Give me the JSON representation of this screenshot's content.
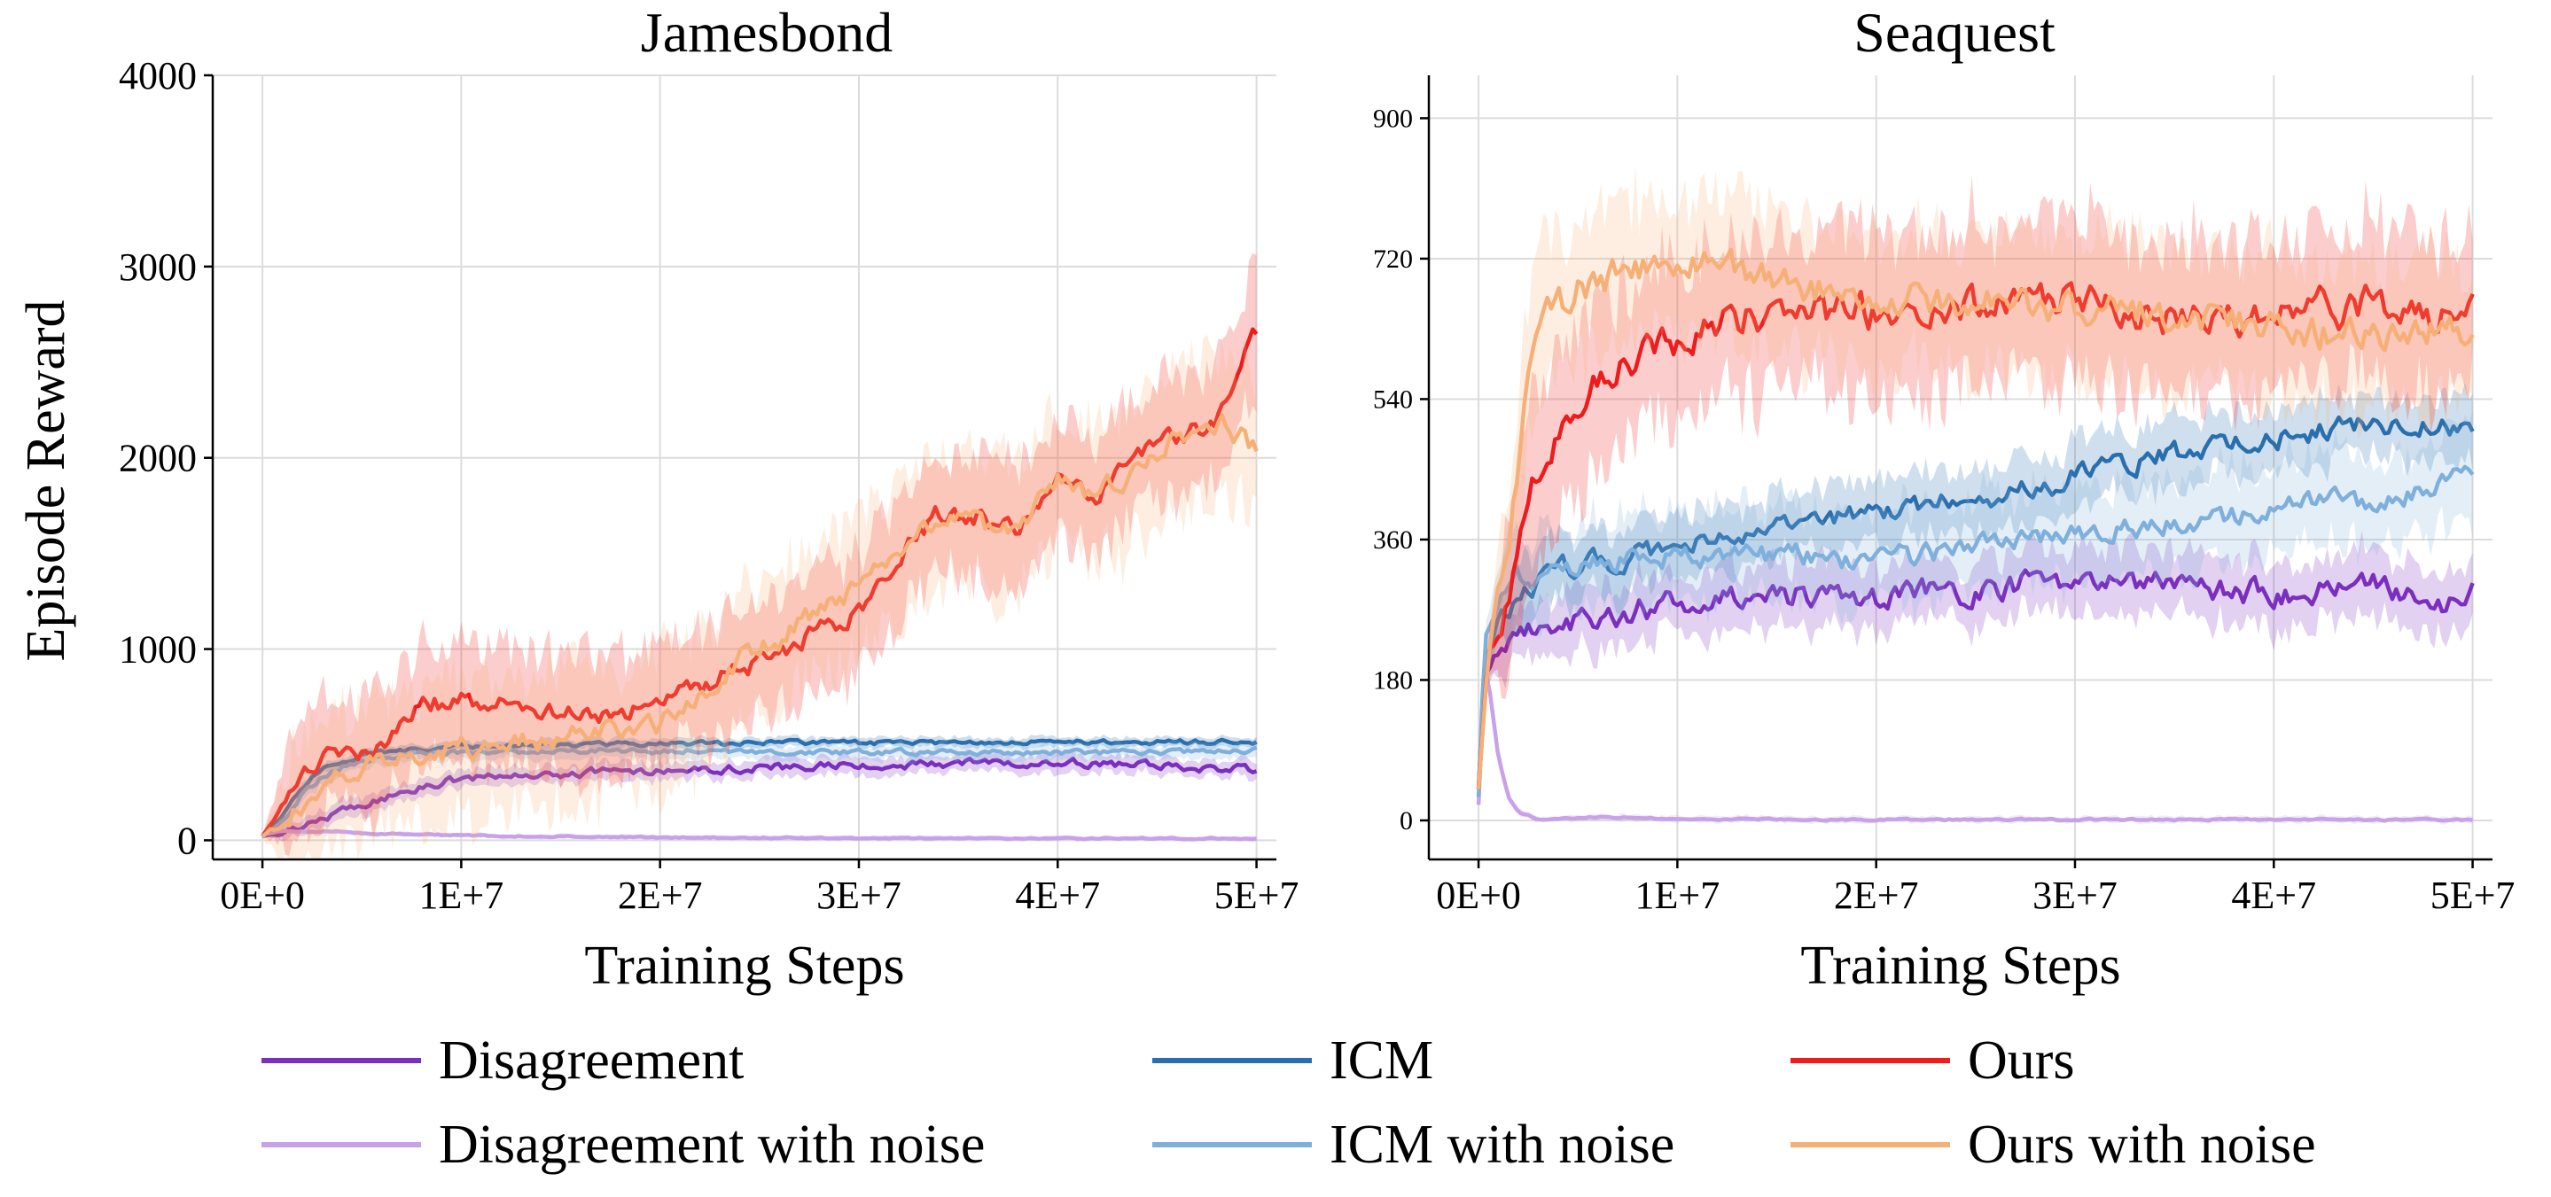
{
  "chart_data": [
    {
      "type": "line",
      "title": "Jamesbond",
      "xlabel": "Training Steps",
      "ylabel": "Episode Reward",
      "xlim": [
        -2500000,
        51000000
      ],
      "ylim": [
        -100,
        4000
      ],
      "xticks": [
        0,
        10000000,
        20000000,
        30000000,
        40000000,
        50000000
      ],
      "xtick_labels": [
        "0E+0",
        "1E+7",
        "2E+7",
        "3E+7",
        "4E+7",
        "5E+7"
      ],
      "yticks": [
        0,
        1000,
        2000,
        3000,
        4000
      ],
      "ytick_labels": [
        "0",
        "1000",
        "2000",
        "3000",
        "4000"
      ],
      "grid": true,
      "series": [
        {
          "name": "Disagreement",
          "color": "#7b2fbe",
          "band": 45,
          "wiggle": 18,
          "x": [
            0,
            1000000,
            2000000,
            4000000,
            6000000,
            8000000,
            10000000,
            15000000,
            20000000,
            25000000,
            30000000,
            35000000,
            40000000,
            45000000,
            50000000
          ],
          "y": [
            20,
            40,
            80,
            150,
            220,
            280,
            320,
            350,
            370,
            380,
            390,
            400,
            410,
            390,
            370
          ]
        },
        {
          "name": "Disagreement with noise",
          "color": "#c8a2e8",
          "band": 12,
          "wiggle": 3,
          "x": [
            0,
            1000000,
            3000000,
            6000000,
            10000000,
            20000000,
            30000000,
            40000000,
            50000000
          ],
          "y": [
            30,
            50,
            45,
            35,
            25,
            15,
            12,
            10,
            10
          ]
        },
        {
          "name": "ICM",
          "color": "#2a6fad",
          "band": 25,
          "wiggle": 10,
          "x": [
            0,
            1000000,
            2000000,
            3000000,
            4000000,
            6000000,
            8000000,
            10000000,
            15000000,
            20000000,
            25000000,
            30000000,
            35000000,
            40000000,
            45000000,
            50000000
          ],
          "y": [
            20,
            120,
            280,
            380,
            420,
            460,
            480,
            490,
            500,
            505,
            510,
            510,
            510,
            515,
            515,
            515
          ]
        },
        {
          "name": "ICM with noise",
          "color": "#7fb0dc",
          "band": 40,
          "wiggle": 12,
          "x": [
            0,
            1000000,
            2000000,
            3000000,
            4000000,
            6000000,
            8000000,
            10000000,
            15000000,
            20000000,
            25000000,
            30000000,
            35000000,
            40000000,
            45000000,
            50000000
          ],
          "y": [
            20,
            100,
            240,
            330,
            380,
            430,
            450,
            460,
            470,
            470,
            465,
            460,
            460,
            460,
            460,
            470
          ]
        },
        {
          "name": "Ours",
          "color": "#ee1c1c",
          "band": 300,
          "wiggle": 45,
          "x": [
            0,
            1000000,
            2000000,
            3000000,
            4000000,
            6000000,
            8000000,
            10000000,
            12000000,
            14000000,
            16000000,
            18000000,
            20000000,
            22000000,
            24000000,
            26000000,
            28000000,
            30000000,
            32000000,
            34000000,
            36000000,
            38000000,
            40000000,
            42000000,
            44000000,
            46000000,
            48000000,
            50000000
          ],
          "y": [
            20,
            200,
            380,
            430,
            450,
            500,
            700,
            740,
            700,
            680,
            650,
            680,
            700,
            800,
            900,
            950,
            1100,
            1200,
            1500,
            1700,
            1700,
            1600,
            1900,
            1800,
            2000,
            2100,
            2200,
            2650
          ]
        },
        {
          "name": "Ours with noise",
          "color": "#f6b077",
          "band": 350,
          "wiggle": 50,
          "x": [
            0,
            1000000,
            2000000,
            3000000,
            4000000,
            6000000,
            8000000,
            10000000,
            12000000,
            14000000,
            16000000,
            18000000,
            20000000,
            22000000,
            24000000,
            26000000,
            28000000,
            30000000,
            32000000,
            34000000,
            36000000,
            38000000,
            40000000,
            42000000,
            44000000,
            46000000,
            48000000,
            50000000
          ],
          "y": [
            20,
            100,
            200,
            300,
            350,
            420,
            450,
            480,
            500,
            520,
            550,
            580,
            600,
            750,
            950,
            1050,
            1200,
            1300,
            1500,
            1700,
            1650,
            1600,
            1900,
            1800,
            1950,
            2100,
            2200,
            2050
          ]
        }
      ]
    },
    {
      "type": "line",
      "title": "Seaquest",
      "xlabel": "Training Steps",
      "ylabel": "",
      "xlim": [
        -2500000,
        51000000
      ],
      "ylim": [
        -50,
        955
      ],
      "xticks": [
        0,
        10000000,
        20000000,
        30000000,
        40000000,
        50000000
      ],
      "xtick_labels": [
        "0E+0",
        "1E+7",
        "2E+7",
        "3E+7",
        "4E+7",
        "5E+7"
      ],
      "yticks": [
        0,
        180,
        360,
        540,
        720,
        900
      ],
      "ytick_labels": [
        "0",
        "180",
        "360",
        "540",
        "720",
        "900"
      ],
      "grid": true,
      "series": [
        {
          "name": "Disagreement",
          "color": "#7b2fbe",
          "band": 40,
          "wiggle": 14,
          "x": [
            0,
            300000,
            1000000,
            2000000,
            4000000,
            6000000,
            8000000,
            10000000,
            15000000,
            20000000,
            25000000,
            30000000,
            35000000,
            40000000,
            45000000,
            48000000,
            50000000
          ],
          "y": [
            40,
            180,
            220,
            245,
            255,
            260,
            270,
            280,
            290,
            285,
            295,
            310,
            300,
            290,
            300,
            270,
            290
          ]
        },
        {
          "name": "Disagreement with noise",
          "color": "#c8a2e8",
          "band": 4,
          "wiggle": 1,
          "x": [
            0,
            300000,
            600000,
            1000000,
            1500000,
            2000000,
            3000000,
            6000000,
            10000000,
            20000000,
            30000000,
            40000000,
            50000000
          ],
          "y": [
            20,
            200,
            160,
            80,
            30,
            10,
            2,
            5,
            2,
            1,
            1,
            1,
            1
          ]
        },
        {
          "name": "ICM",
          "color": "#2a6fad",
          "band": 40,
          "wiggle": 12,
          "x": [
            0,
            300000,
            1000000,
            2000000,
            4000000,
            6000000,
            8000000,
            10000000,
            15000000,
            20000000,
            25000000,
            30000000,
            35000000,
            40000000,
            45000000,
            50000000
          ],
          "y": [
            40,
            200,
            260,
            290,
            320,
            330,
            340,
            350,
            370,
            400,
            410,
            440,
            470,
            490,
            510,
            500
          ]
        },
        {
          "name": "ICM with noise",
          "color": "#7fb0dc",
          "band": 60,
          "wiggle": 12,
          "x": [
            0,
            300000,
            1000000,
            2000000,
            4000000,
            6000000,
            8000000,
            10000000,
            15000000,
            20000000,
            25000000,
            30000000,
            35000000,
            40000000,
            45000000,
            50000000
          ],
          "y": [
            30,
            230,
            280,
            310,
            320,
            330,
            335,
            340,
            340,
            330,
            350,
            370,
            380,
            400,
            410,
            440
          ]
        },
        {
          "name": "Ours",
          "color": "#ee1c1c",
          "band": 100,
          "wiggle": 20,
          "x": [
            0,
            500000,
            1500000,
            2500000,
            3500000,
            5000000,
            7000000,
            10000000,
            12000000,
            15000000,
            20000000,
            25000000,
            30000000,
            35000000,
            40000000,
            45000000,
            48000000,
            50000000
          ],
          "y": [
            40,
            220,
            280,
            400,
            480,
            540,
            590,
            620,
            640,
            650,
            650,
            660,
            670,
            640,
            650,
            660,
            640,
            680
          ]
        },
        {
          "name": "Ours with noise",
          "color": "#f6b077",
          "band": 90,
          "wiggle": 18,
          "x": [
            0,
            500000,
            1500000,
            2500000,
            3500000,
            5000000,
            7000000,
            10000000,
            12000000,
            15000000,
            20000000,
            25000000,
            30000000,
            35000000,
            40000000,
            45000000,
            48000000,
            50000000
          ],
          "y": [
            40,
            220,
            360,
            560,
            640,
            680,
            700,
            710,
            715,
            690,
            670,
            665,
            660,
            650,
            630,
            620,
            630,
            620
          ]
        }
      ]
    }
  ],
  "legend": [
    {
      "label": "Disagreement",
      "color": "#7b2fbe"
    },
    {
      "label": "ICM",
      "color": "#2a6fad"
    },
    {
      "label": "Ours",
      "color": "#ee1c1c"
    },
    {
      "label": "Disagreement with noise",
      "color": "#c8a2e8"
    },
    {
      "label": "ICM with noise",
      "color": "#7fb0dc"
    },
    {
      "label": "Ours with noise",
      "color": "#f6b077"
    }
  ]
}
